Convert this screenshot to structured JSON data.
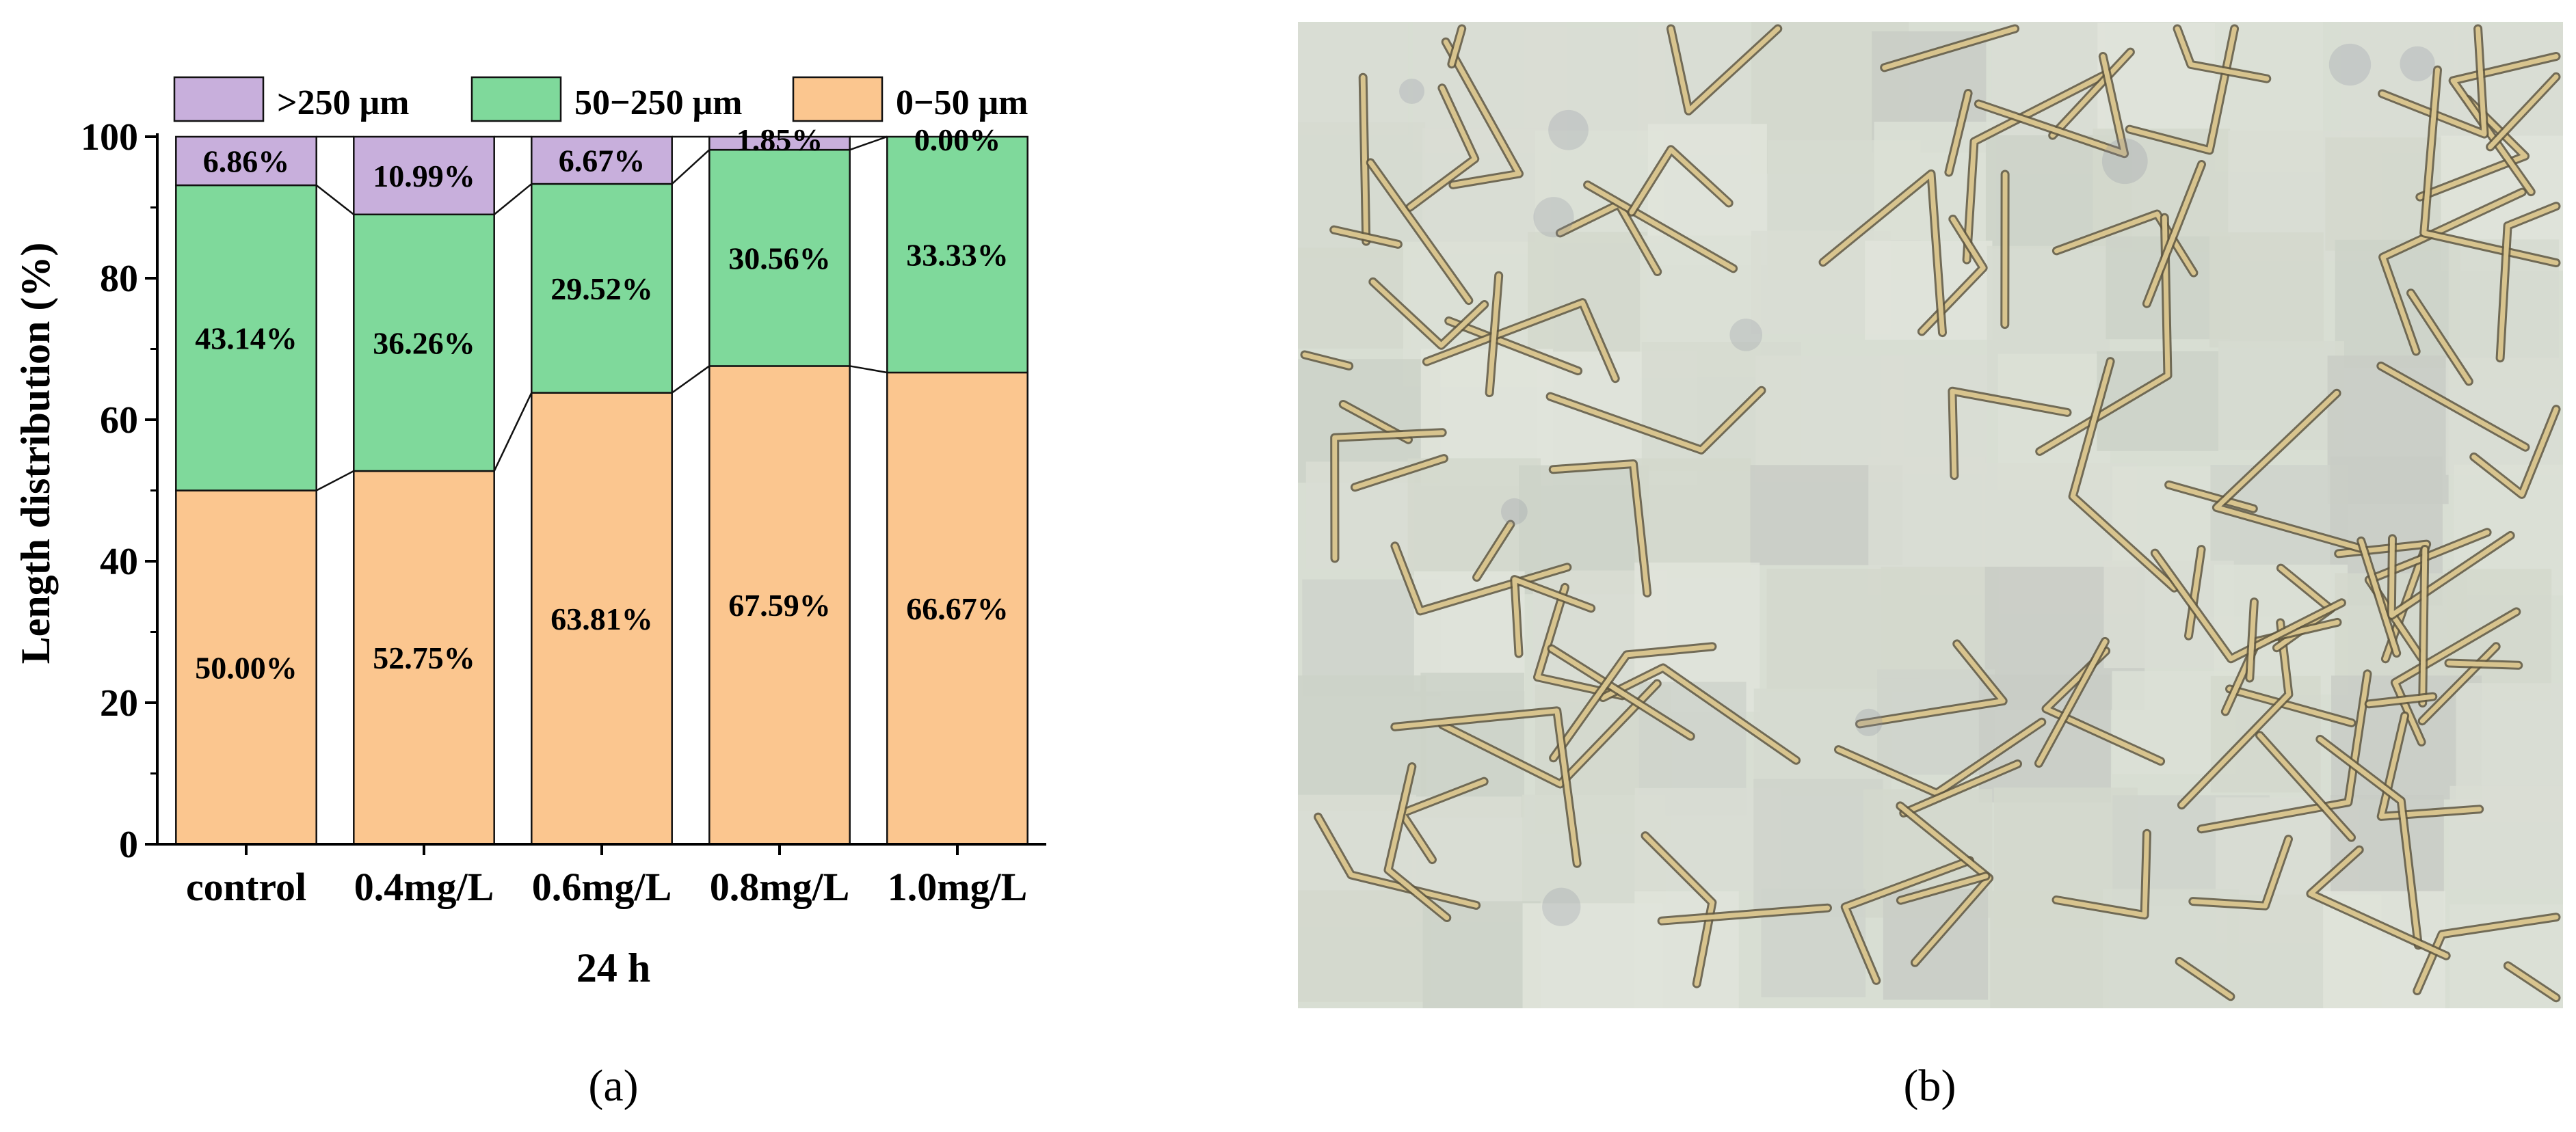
{
  "panels": {
    "a": "(a)",
    "b": "(b)"
  },
  "chart_data": {
    "type": "bar",
    "stacked": true,
    "categories": [
      "control",
      "0.4mg/L",
      "0.6mg/L",
      "0.8mg/L",
      "1.0mg/L"
    ],
    "series": [
      {
        "name": "0−50 μm",
        "color": "#FBC68F",
        "values": [
          50.0,
          52.75,
          63.81,
          67.59,
          66.67
        ],
        "labels": [
          "50.00%",
          "52.75%",
          "63.81%",
          "67.59%",
          "66.67%"
        ]
      },
      {
        "name": "50−250 μm",
        "color": "#7FD99B",
        "values": [
          43.14,
          36.26,
          29.52,
          30.56,
          33.33
        ],
        "labels": [
          "43.14%",
          "36.26%",
          "29.52%",
          "30.56%",
          "33.33%"
        ]
      },
      {
        "name": ">250 μm",
        "color": "#C8AFDC",
        "values": [
          6.86,
          10.99,
          6.67,
          1.85,
          0.0
        ],
        "labels": [
          "6.86%",
          "10.99%",
          "6.67%",
          "1.85%",
          "0.00%"
        ]
      }
    ],
    "legend": [
      {
        "name": ">250 μm",
        "color": "#C8AFDC"
      },
      {
        "name": "50−250 μm",
        "color": "#7FD99B"
      },
      {
        "name": "0−50 μm",
        "color": "#FBC68F"
      }
    ],
    "legend_position": "top",
    "ylabel": "Length distribution (%)",
    "xlabel": "24 h",
    "ylim": [
      0,
      100
    ],
    "yticks": [
      0,
      20,
      40,
      60,
      80,
      100
    ],
    "grid": false,
    "connector_lines": true
  },
  "micrograph": {
    "background": "#D7DDD2",
    "description_tag": "microscope-collage"
  }
}
